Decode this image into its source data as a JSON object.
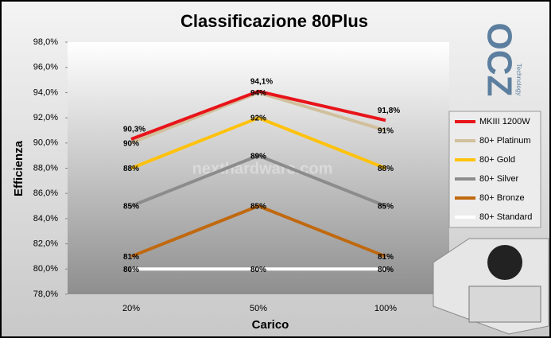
{
  "chart_data": {
    "type": "line",
    "title": "Classificazione 80Plus",
    "x_label": "Carico",
    "y_label": "Efficienza",
    "categories": [
      "20%",
      "50%",
      "100%"
    ],
    "ylim": [
      78,
      98
    ],
    "yticks": [
      {
        "value": 78,
        "label": "78,0%"
      },
      {
        "value": 80,
        "label": "80,0%"
      },
      {
        "value": 82,
        "label": "82,0%"
      },
      {
        "value": 84,
        "label": "84,0%"
      },
      {
        "value": 86,
        "label": "86,0%"
      },
      {
        "value": 88,
        "label": "88,0%"
      },
      {
        "value": 90,
        "label": "90,0%"
      },
      {
        "value": 92,
        "label": "92,0%"
      },
      {
        "value": 94,
        "label": "94,0%"
      },
      {
        "value": 96,
        "label": "96,0%"
      },
      {
        "value": 98,
        "label": "98,0%"
      }
    ],
    "grid": false,
    "legend_position": "right",
    "watermark": "nexthardware.com",
    "logo": "OCZ",
    "logo_subtitle": "Technology",
    "series": [
      {
        "name": "MKIII 1200W",
        "color": "#e8141a",
        "values": [
          90.3,
          94.1,
          91.8
        ],
        "value_labels": [
          "90,3%",
          "94,1%",
          "91,8%"
        ]
      },
      {
        "name": "80+ Platinum",
        "color": "#d1c09c",
        "values": [
          90,
          94,
          91
        ],
        "value_labels": [
          "90%",
          "94%",
          "91%"
        ]
      },
      {
        "name": "80+ Gold",
        "color": "#ffc20e",
        "values": [
          88,
          92,
          88
        ],
        "value_labels": [
          "88%",
          "92%",
          "88%"
        ]
      },
      {
        "name": "80+ Silver",
        "color": "#8c8c8c",
        "values": [
          85,
          89,
          85
        ],
        "value_labels": [
          "85%",
          "89%",
          "85%"
        ]
      },
      {
        "name": "80+ Bronze",
        "color": "#c0690f",
        "values": [
          81,
          85,
          81
        ],
        "value_labels": [
          "81%",
          "85%",
          "81%"
        ]
      },
      {
        "name": "80+ Standard",
        "color": "#ffffff",
        "values": [
          80,
          80,
          80
        ],
        "value_labels": [
          "80%",
          "80%",
          "80%"
        ]
      }
    ]
  }
}
